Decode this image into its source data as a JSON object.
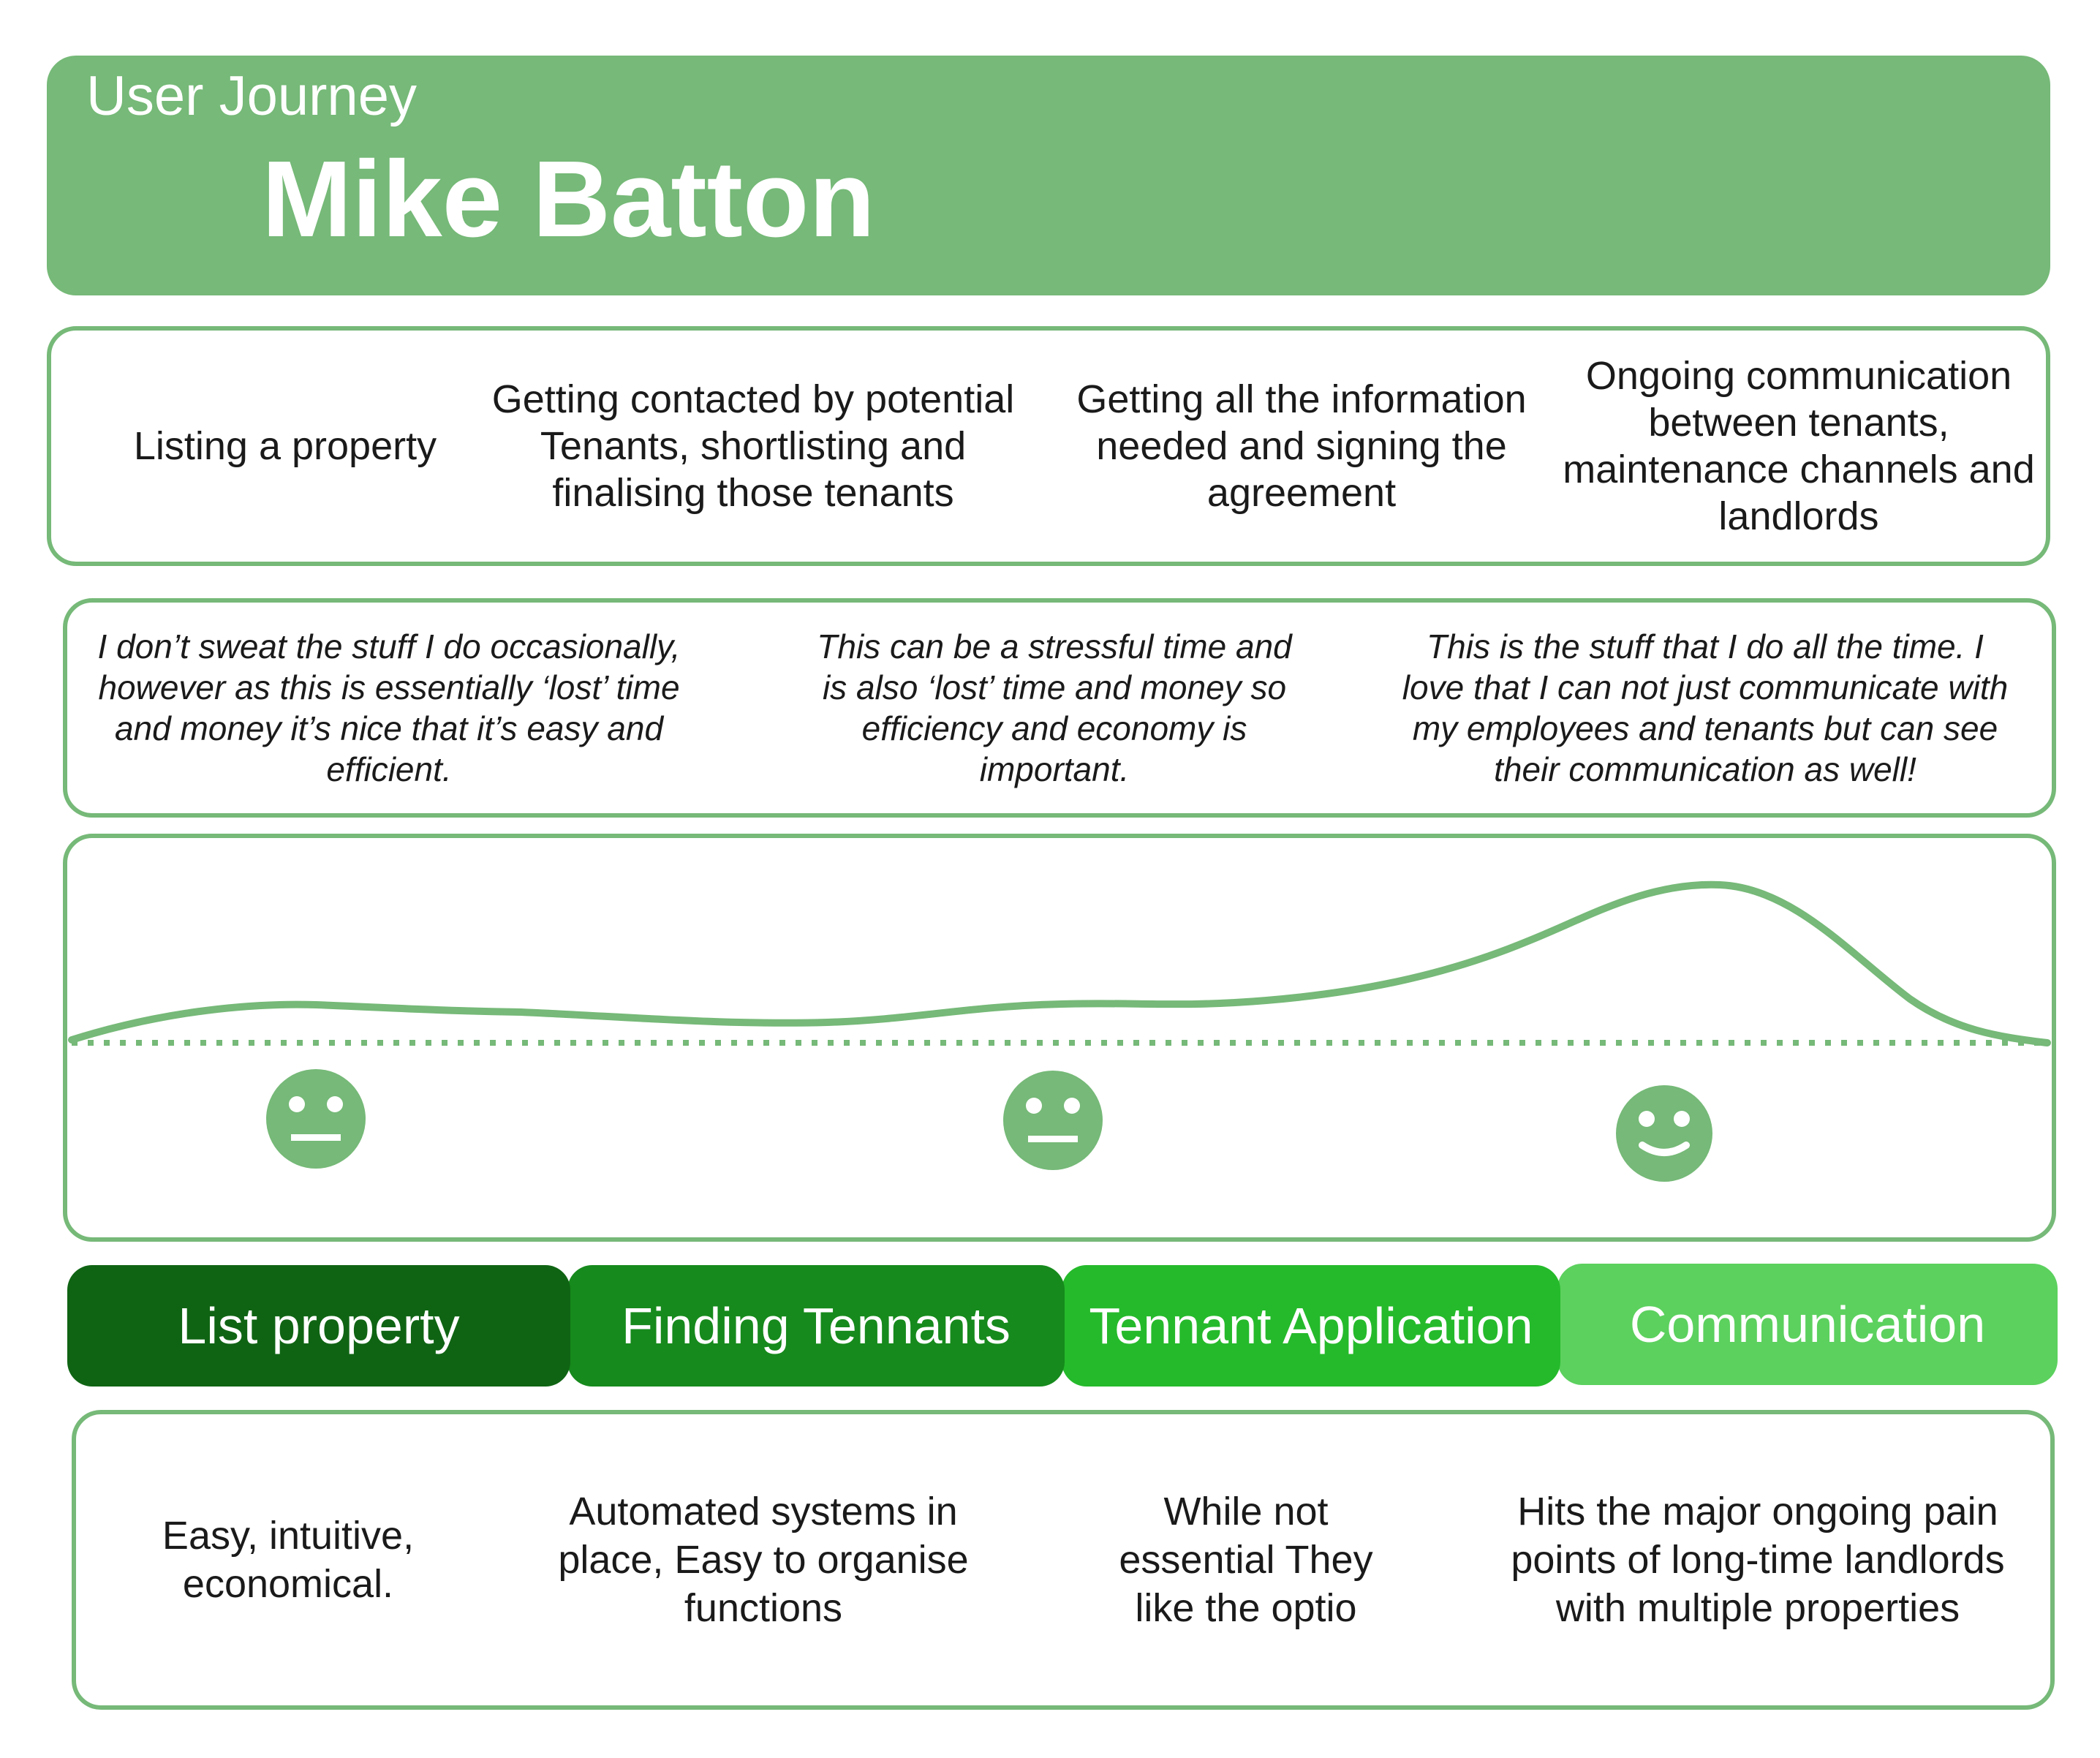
{
  "header": {
    "subtitle": "User Journey",
    "title": "Mike Batton",
    "color": "#76b978"
  },
  "steps": [
    "Listing a property",
    "Getting contacted by potential Tenants, shortlisting and finalising those tenants",
    "Getting all the information needed and signing the agreement",
    "Ongoing communication between tenants, maintenance channels and landlords"
  ],
  "quotes": [
    "I don’t sweat the stuff I do occasionally, however as this is essentially ‘lost’ time and money it’s nice that it’s easy and efficient.",
    "This can be a stressful time and is also ‘lost’ time and money so efficiency and economy is important.",
    "This is the stuff that I do all the time. I love that I can not just communicate with my employees and tenants but can see their communication as well!"
  ],
  "emotions": [
    {
      "icon": "neutral-face-icon",
      "mood": "neutral"
    },
    {
      "icon": "neutral-face-icon",
      "mood": "neutral"
    },
    {
      "icon": "smile-face-icon",
      "mood": "happy"
    }
  ],
  "phases": [
    {
      "label": "List property",
      "color": "#0f6413"
    },
    {
      "label": "Finding Tennants",
      "color": "#168a1c"
    },
    {
      "label": "Tennant Application",
      "color": "#25ba2b"
    },
    {
      "label": "Communication",
      "color": "#5cd15e"
    }
  ],
  "notes": [
    "Easy, intuitive, economical.",
    "Automated systems in place, Easy to organise functions",
    "While not essential They like the optio",
    "Hits the major ongoing pain points of long-time landlords with multiple properties"
  ]
}
